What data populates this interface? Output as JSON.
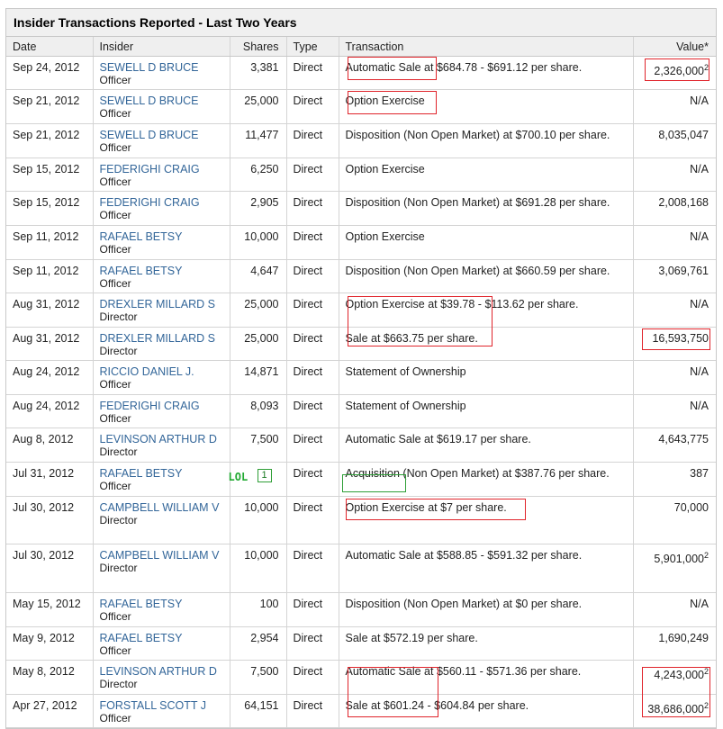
{
  "title": "Insider Transactions Reported - Last Two Years",
  "headers": {
    "date": "Date",
    "insider": "Insider",
    "shares": "Shares",
    "type": "Type",
    "transaction": "Transaction",
    "value": "Value*"
  },
  "annotation": {
    "lol_text": "LOL",
    "lol_num": "1"
  },
  "rows": [
    {
      "date": "Sep 24, 2012",
      "name": "SEWELL D BRUCE",
      "role": "Officer",
      "shares": "3,381",
      "type": "Direct",
      "tx": "Automatic Sale at $684.78 - $691.12 per share.",
      "value": "2,326,000",
      "sup": "2"
    },
    {
      "date": "Sep 21, 2012",
      "name": "SEWELL D BRUCE",
      "role": "Officer",
      "shares": "25,000",
      "type": "Direct",
      "tx": "Option Exercise",
      "value": "N/A"
    },
    {
      "date": "Sep 21, 2012",
      "name": "SEWELL D BRUCE",
      "role": "Officer",
      "shares": "11,477",
      "type": "Direct",
      "tx": "Disposition (Non Open Market) at $700.10 per share.",
      "value": "8,035,047"
    },
    {
      "date": "Sep 15, 2012",
      "name": "FEDERIGHI CRAIG",
      "role": "Officer",
      "shares": "6,250",
      "type": "Direct",
      "tx": "Option Exercise",
      "value": "N/A"
    },
    {
      "date": "Sep 15, 2012",
      "name": "FEDERIGHI CRAIG",
      "role": "Officer",
      "shares": "2,905",
      "type": "Direct",
      "tx": "Disposition (Non Open Market) at $691.28 per share.",
      "value": "2,008,168"
    },
    {
      "date": "Sep 11, 2012",
      "name": "RAFAEL BETSY",
      "role": "Officer",
      "shares": "10,000",
      "type": "Direct",
      "tx": "Option Exercise",
      "value": "N/A"
    },
    {
      "date": "Sep 11, 2012",
      "name": "RAFAEL BETSY",
      "role": "Officer",
      "shares": "4,647",
      "type": "Direct",
      "tx": "Disposition (Non Open Market) at $660.59 per share.",
      "value": "3,069,761"
    },
    {
      "date": "Aug 31, 2012",
      "name": "DREXLER MILLARD S",
      "role": "Director",
      "shares": "25,000",
      "type": "Direct",
      "tx": "Option Exercise at $39.78 - $113.62 per share.",
      "value": "N/A"
    },
    {
      "date": "Aug 31, 2012",
      "name": "DREXLER MILLARD S",
      "role": "Director",
      "shares": "25,000",
      "type": "Direct",
      "tx": "Sale at $663.75 per share.",
      "value": "16,593,750"
    },
    {
      "date": "Aug 24, 2012",
      "name": "RICCIO DANIEL J.",
      "role": "Officer",
      "shares": "14,871",
      "type": "Direct",
      "tx": "Statement of Ownership",
      "value": "N/A"
    },
    {
      "date": "Aug 24, 2012",
      "name": "FEDERIGHI CRAIG",
      "role": "Officer",
      "shares": "8,093",
      "type": "Direct",
      "tx": "Statement of Ownership",
      "value": "N/A"
    },
    {
      "date": "Aug 8, 2012",
      "name": "LEVINSON ARTHUR D",
      "role": "Director",
      "shares": "7,500",
      "type": "Direct",
      "tx": "Automatic Sale at $619.17 per share.",
      "value": "4,643,775"
    },
    {
      "date": "Jul 31, 2012",
      "name": "RAFAEL BETSY",
      "role": "Officer",
      "shares": "",
      "type": "Direct",
      "tx_a": "Acquisition",
      "tx_b": " (Non Open Market) at $387.76 per share.",
      "value": "387"
    },
    {
      "date": "Jul 30, 2012",
      "name": "CAMPBELL WILLIAM V",
      "role": "Director",
      "shares": "10,000",
      "type": "Direct",
      "tx": "Option Exercise at $7 per share.",
      "value": "70,000"
    },
    {
      "date": "Jul 30, 2012",
      "name": "CAMPBELL WILLIAM V",
      "role": "Director",
      "shares": "10,000",
      "type": "Direct",
      "tx": "Automatic Sale at $588.85 - $591.32 per share.",
      "value": "5,901,000",
      "sup": "2"
    },
    {
      "date": "May 15, 2012",
      "name": "RAFAEL BETSY",
      "role": "Officer",
      "shares": "100",
      "type": "Direct",
      "tx": "Disposition (Non Open Market) at $0 per share.",
      "value": "N/A"
    },
    {
      "date": "May 9, 2012",
      "name": "RAFAEL BETSY",
      "role": "Officer",
      "shares": "2,954",
      "type": "Direct",
      "tx": "Sale at $572.19 per share.",
      "value": "1,690,249"
    },
    {
      "date": "May 8, 2012",
      "name": "LEVINSON ARTHUR D",
      "role": "Director",
      "shares": "7,500",
      "type": "Direct",
      "tx": "Automatic Sale at $560.11 - $571.36 per share.",
      "value": "4,243,000",
      "sup": "2"
    },
    {
      "date": "Apr 27, 2012",
      "name": "FORSTALL SCOTT J",
      "role": "Officer",
      "shares": "64,151",
      "type": "Direct",
      "tx": "Sale at $601.24 - $604.84 per share.",
      "value": "38,686,000",
      "sup": "2"
    }
  ]
}
